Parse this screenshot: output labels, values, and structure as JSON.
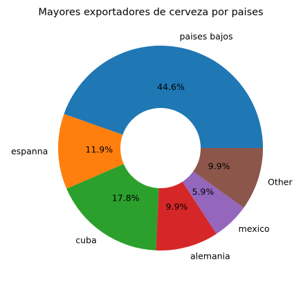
{
  "chart_data": {
    "type": "pie",
    "title": "Mayores exportadores de cerveza por paises",
    "donut": true,
    "start_angle_deg": 0,
    "direction": "counterclockwise",
    "slices": [
      {
        "label": "paises bajos",
        "value": 44.6,
        "pct_label": "44.6%",
        "color": "#1f77b4"
      },
      {
        "label": "espanna",
        "value": 11.9,
        "pct_label": "11.9%",
        "color": "#ff7f0e"
      },
      {
        "label": "cuba",
        "value": 17.8,
        "pct_label": "17.8%",
        "color": "#2ca02c"
      },
      {
        "label": "alemania",
        "value": 9.9,
        "pct_label": "9.9%",
        "color": "#d62728"
      },
      {
        "label": "mexico",
        "value": 5.9,
        "pct_label": "5.9%",
        "color": "#9467bd"
      },
      {
        "label": "Other",
        "value": 9.9,
        "pct_label": "9.9%",
        "color": "#8c564b"
      }
    ]
  }
}
